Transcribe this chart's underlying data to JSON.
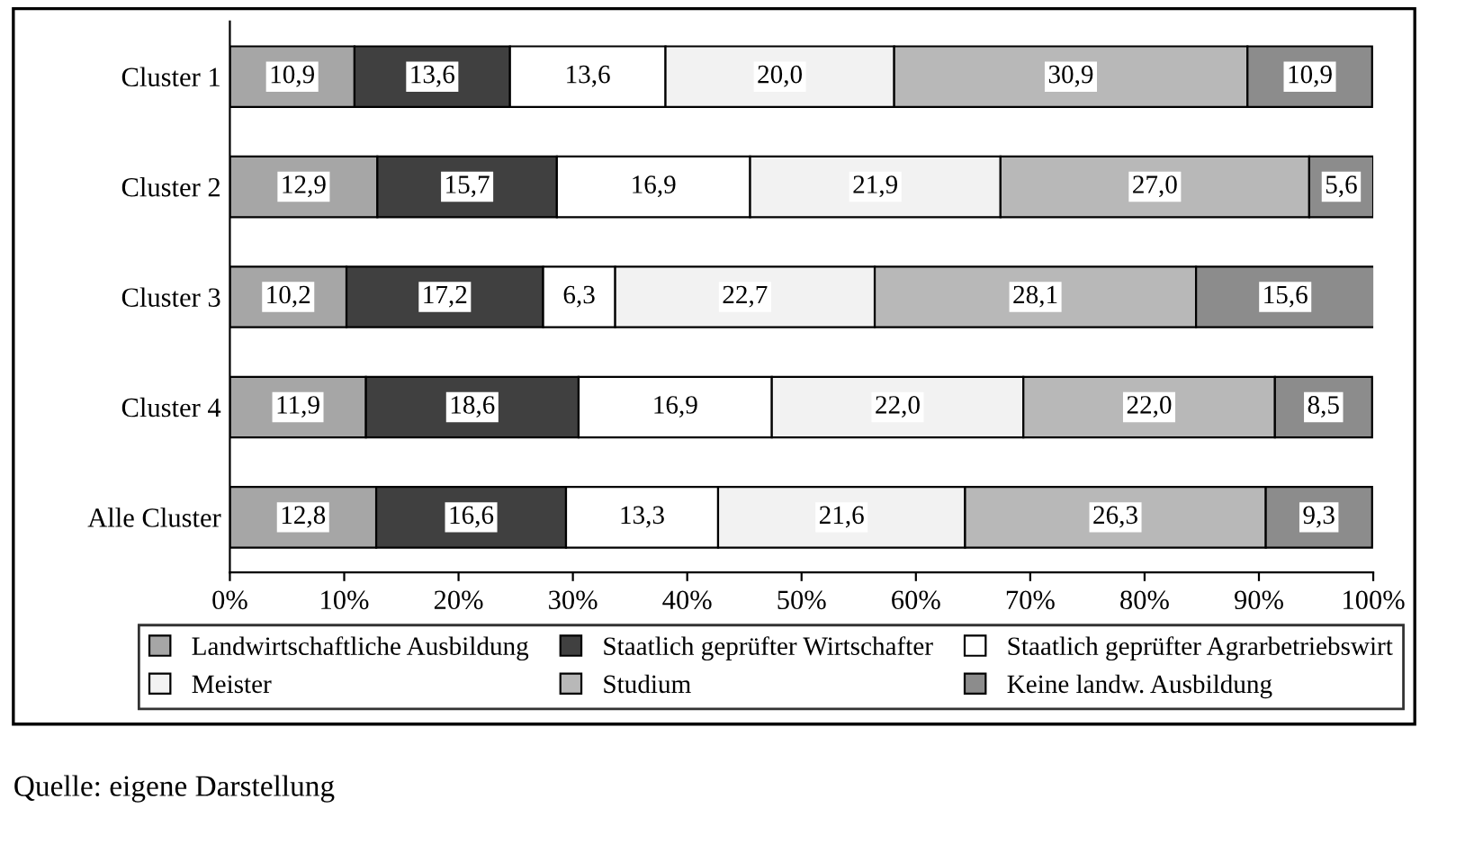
{
  "chart_data": {
    "type": "bar",
    "orientation": "horizontal",
    "stacked": true,
    "categories": [
      "Cluster 1",
      "Cluster 2",
      "Cluster 3",
      "Cluster 4",
      "Alle Cluster"
    ],
    "series": [
      {
        "name": "Landwirtschaftliche Ausbildung",
        "color": "#a6a6a6",
        "values": [
          10.9,
          12.9,
          10.2,
          11.9,
          12.8
        ],
        "value_labels": [
          "10,9",
          "12,9",
          "10,2",
          "11,9",
          "12,8"
        ]
      },
      {
        "name": "Staatlich geprüfter Wirtschafter",
        "color": "#404040",
        "values": [
          13.6,
          15.7,
          17.2,
          18.6,
          16.6
        ],
        "value_labels": [
          "13,6",
          "15,7",
          "17,2",
          "18,6",
          "16,6"
        ]
      },
      {
        "name": "Staatlich geprüfter Agrarbetriebswirt",
        "color": "#ffffff",
        "values": [
          13.6,
          16.9,
          6.3,
          16.9,
          13.3
        ],
        "value_labels": [
          "13,6",
          "16,9",
          "6,3",
          "16,9",
          "13,3"
        ]
      },
      {
        "name": "Meister",
        "color": "#f2f2f2",
        "values": [
          20.0,
          21.9,
          22.7,
          22.0,
          21.6
        ],
        "value_labels": [
          "20,0",
          "21,9",
          "22,7",
          "22,0",
          "21,6"
        ]
      },
      {
        "name": "Studium",
        "color": "#b8b8b8",
        "values": [
          30.9,
          27.0,
          28.1,
          22.0,
          26.3
        ],
        "value_labels": [
          "30,9",
          "27,0",
          "28,1",
          "22,0",
          "26,3"
        ]
      },
      {
        "name": "Keine landw. Ausbildung",
        "color": "#8c8c8c",
        "values": [
          10.9,
          5.6,
          15.6,
          8.5,
          9.3
        ],
        "value_labels": [
          "10,9",
          "5,6",
          "15,6",
          "8,5",
          "9,3"
        ]
      }
    ],
    "xlim": [
      0,
      100
    ],
    "xticks": [
      {
        "value": 0,
        "label": "0%"
      },
      {
        "value": 10,
        "label": "10%"
      },
      {
        "value": 20,
        "label": "20%"
      },
      {
        "value": 30,
        "label": "30%"
      },
      {
        "value": 40,
        "label": "40%"
      },
      {
        "value": 50,
        "label": "50%"
      },
      {
        "value": 60,
        "label": "60%"
      },
      {
        "value": 70,
        "label": "70%"
      },
      {
        "value": 80,
        "label": "80%"
      },
      {
        "value": 90,
        "label": "90%"
      },
      {
        "value": 100,
        "label": "100%"
      }
    ],
    "grid": false,
    "legend": "bottom",
    "annotations": [
      "Quelle: eigene Darstellung"
    ]
  }
}
